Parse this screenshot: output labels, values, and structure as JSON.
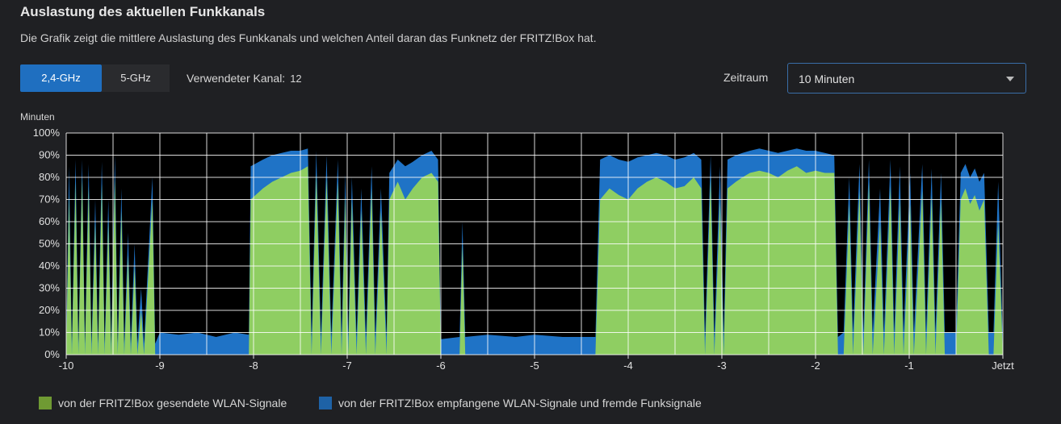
{
  "header": {
    "title": "Auslastung des aktuellen Funkkanals",
    "description": "Die Grafik zeigt die mittlere Auslastung des Funkkanals und welchen Anteil daran das Funknetz der FRITZ!Box hat."
  },
  "tabs": [
    {
      "label": "2,4-GHz",
      "active": true
    },
    {
      "label": "5-GHz",
      "active": false
    }
  ],
  "channel": {
    "label": "Verwendeter Kanal:",
    "value": "12"
  },
  "timerange": {
    "label": "Zeitraum",
    "selected": "10 Minuten"
  },
  "colors": {
    "sent": "#8fce62",
    "received": "#1f73c6",
    "sent_legend": "#6f9a33",
    "received_legend": "#1e62a6"
  },
  "legend": {
    "sent": "von der FRITZ!Box gesendete WLAN-Signale",
    "received": "von der FRITZ!Box empfangene WLAN-Signale und fremde Funksignale"
  },
  "chart_data": {
    "type": "area",
    "stacked": true,
    "ylabel": "Minuten",
    "xlabel": "",
    "ylim": [
      0,
      100
    ],
    "y_ticks": [
      "0%",
      "10%",
      "20%",
      "30%",
      "40%",
      "50%",
      "60%",
      "70%",
      "80%",
      "90%",
      "100%"
    ],
    "xlim": [
      -10,
      0
    ],
    "x_ticks": [
      {
        "v": -10,
        "label": "-10"
      },
      {
        "v": -9,
        "label": "-9"
      },
      {
        "v": -8,
        "label": "-8"
      },
      {
        "v": -7,
        "label": "-7"
      },
      {
        "v": -6,
        "label": "-6"
      },
      {
        "v": -5,
        "label": "-5"
      },
      {
        "v": -4,
        "label": "-4"
      },
      {
        "v": -3,
        "label": "-3"
      },
      {
        "v": -2,
        "label": "-2"
      },
      {
        "v": -1,
        "label": "-1"
      },
      {
        "v": 0,
        "label": "Jetzt"
      }
    ],
    "grid": true,
    "series": [
      {
        "name": "von der FRITZ!Box gesendete WLAN-Signale",
        "key": "sent",
        "points": [
          [
            -10,
            0
          ],
          [
            -9.97,
            72
          ],
          [
            -9.94,
            0
          ],
          [
            -9.9,
            78
          ],
          [
            -9.87,
            0
          ],
          [
            -9.83,
            80
          ],
          [
            -9.8,
            0
          ],
          [
            -9.76,
            76
          ],
          [
            -9.73,
            0
          ],
          [
            -9.69,
            60
          ],
          [
            -9.66,
            0
          ],
          [
            -9.62,
            77
          ],
          [
            -9.59,
            0
          ],
          [
            -9.55,
            60
          ],
          [
            -9.52,
            0
          ],
          [
            -9.48,
            80
          ],
          [
            -9.45,
            0
          ],
          [
            -9.41,
            65
          ],
          [
            -9.38,
            0
          ],
          [
            -9.34,
            45
          ],
          [
            -9.31,
            0
          ],
          [
            -9.27,
            40
          ],
          [
            -9.24,
            0
          ],
          [
            -9.2,
            20
          ],
          [
            -9.17,
            0
          ],
          [
            -9.08,
            70
          ],
          [
            -9.05,
            0
          ],
          [
            -9.0,
            0
          ],
          [
            -8.5,
            0
          ],
          [
            -8.05,
            0
          ],
          [
            -8.03,
            70
          ],
          [
            -7.9,
            75
          ],
          [
            -7.8,
            78
          ],
          [
            -7.7,
            80
          ],
          [
            -7.6,
            82
          ],
          [
            -7.5,
            83
          ],
          [
            -7.42,
            85
          ],
          [
            -7.38,
            0
          ],
          [
            -7.33,
            82
          ],
          [
            -7.28,
            0
          ],
          [
            -7.22,
            80
          ],
          [
            -7.17,
            0
          ],
          [
            -7.1,
            78
          ],
          [
            -7.06,
            0
          ],
          [
            -7.02,
            72
          ],
          [
            -6.99,
            0
          ],
          [
            -6.95,
            70
          ],
          [
            -6.9,
            0
          ],
          [
            -6.85,
            65
          ],
          [
            -6.8,
            0
          ],
          [
            -6.74,
            75
          ],
          [
            -6.7,
            0
          ],
          [
            -6.64,
            65
          ],
          [
            -6.58,
            0
          ],
          [
            -6.55,
            70
          ],
          [
            -6.46,
            78
          ],
          [
            -6.38,
            70
          ],
          [
            -6.3,
            75
          ],
          [
            -6.2,
            80
          ],
          [
            -6.1,
            82
          ],
          [
            -6.03,
            78
          ],
          [
            -6.0,
            0
          ],
          [
            -5.8,
            0
          ],
          [
            -5.77,
            50
          ],
          [
            -5.74,
            0
          ],
          [
            -5.0,
            0
          ],
          [
            -4.35,
            0
          ],
          [
            -4.3,
            70
          ],
          [
            -4.2,
            75
          ],
          [
            -4.1,
            72
          ],
          [
            -4.0,
            70
          ],
          [
            -3.9,
            75
          ],
          [
            -3.8,
            78
          ],
          [
            -3.7,
            80
          ],
          [
            -3.6,
            78
          ],
          [
            -3.5,
            75
          ],
          [
            -3.4,
            76
          ],
          [
            -3.3,
            80
          ],
          [
            -3.22,
            75
          ],
          [
            -3.18,
            0
          ],
          [
            -3.12,
            80
          ],
          [
            -3.08,
            0
          ],
          [
            -3.02,
            70
          ],
          [
            -2.98,
            0
          ],
          [
            -2.94,
            75
          ],
          [
            -2.85,
            78
          ],
          [
            -2.78,
            80
          ],
          [
            -2.7,
            82
          ],
          [
            -2.6,
            83
          ],
          [
            -2.5,
            82
          ],
          [
            -2.4,
            80
          ],
          [
            -2.3,
            83
          ],
          [
            -2.2,
            85
          ],
          [
            -2.1,
            82
          ],
          [
            -2.0,
            83
          ],
          [
            -1.9,
            82
          ],
          [
            -1.8,
            82
          ],
          [
            -1.76,
            0
          ],
          [
            -1.7,
            0
          ],
          [
            -1.64,
            68
          ],
          [
            -1.6,
            0
          ],
          [
            -1.53,
            74
          ],
          [
            -1.49,
            0
          ],
          [
            -1.43,
            78
          ],
          [
            -1.39,
            0
          ],
          [
            -1.31,
            60
          ],
          [
            -1.27,
            0
          ],
          [
            -1.2,
            76
          ],
          [
            -1.16,
            0
          ],
          [
            -1.1,
            70
          ],
          [
            -1.06,
            0
          ],
          [
            -0.99,
            68
          ],
          [
            -0.95,
            0
          ],
          [
            -0.86,
            74
          ],
          [
            -0.82,
            0
          ],
          [
            -0.76,
            72
          ],
          [
            -0.72,
            0
          ],
          [
            -0.66,
            70
          ],
          [
            -0.62,
            0
          ],
          [
            -0.5,
            0
          ],
          [
            -0.45,
            70
          ],
          [
            -0.4,
            75
          ],
          [
            -0.35,
            68
          ],
          [
            -0.3,
            72
          ],
          [
            -0.25,
            65
          ],
          [
            -0.2,
            70
          ],
          [
            -0.15,
            0
          ],
          [
            -0.1,
            0
          ],
          [
            -0.05,
            60
          ],
          [
            0,
            0
          ]
        ]
      },
      {
        "name": "von der FRITZ!Box empfangene WLAN-Signale und fremde Funksignale",
        "key": "received",
        "points": [
          [
            -10,
            5
          ],
          [
            -9.97,
            85
          ],
          [
            -9.94,
            5
          ],
          [
            -9.9,
            88
          ],
          [
            -9.87,
            5
          ],
          [
            -9.83,
            88
          ],
          [
            -9.8,
            5
          ],
          [
            -9.76,
            86
          ],
          [
            -9.73,
            5
          ],
          [
            -9.69,
            70
          ],
          [
            -9.66,
            5
          ],
          [
            -9.62,
            87
          ],
          [
            -9.59,
            5
          ],
          [
            -9.55,
            70
          ],
          [
            -9.52,
            5
          ],
          [
            -9.48,
            90
          ],
          [
            -9.45,
            5
          ],
          [
            -9.41,
            75
          ],
          [
            -9.38,
            5
          ],
          [
            -9.34,
            55
          ],
          [
            -9.31,
            5
          ],
          [
            -9.27,
            50
          ],
          [
            -9.24,
            5
          ],
          [
            -9.2,
            30
          ],
          [
            -9.17,
            5
          ],
          [
            -9.08,
            80
          ],
          [
            -9.05,
            5
          ],
          [
            -9.0,
            10
          ],
          [
            -8.8,
            9
          ],
          [
            -8.6,
            10
          ],
          [
            -8.4,
            8
          ],
          [
            -8.2,
            10
          ],
          [
            -8.05,
            9
          ],
          [
            -8.03,
            85
          ],
          [
            -7.9,
            88
          ],
          [
            -7.8,
            90
          ],
          [
            -7.7,
            91
          ],
          [
            -7.6,
            92
          ],
          [
            -7.5,
            92
          ],
          [
            -7.42,
            93
          ],
          [
            -7.38,
            8
          ],
          [
            -7.33,
            92
          ],
          [
            -7.28,
            8
          ],
          [
            -7.22,
            90
          ],
          [
            -7.17,
            8
          ],
          [
            -7.1,
            88
          ],
          [
            -7.06,
            8
          ],
          [
            -7.02,
            82
          ],
          [
            -6.99,
            8
          ],
          [
            -6.95,
            80
          ],
          [
            -6.9,
            8
          ],
          [
            -6.85,
            75
          ],
          [
            -6.8,
            8
          ],
          [
            -6.74,
            85
          ],
          [
            -6.7,
            8
          ],
          [
            -6.64,
            75
          ],
          [
            -6.58,
            8
          ],
          [
            -6.55,
            82
          ],
          [
            -6.46,
            88
          ],
          [
            -6.38,
            85
          ],
          [
            -6.3,
            87
          ],
          [
            -6.2,
            90
          ],
          [
            -6.1,
            92
          ],
          [
            -6.03,
            88
          ],
          [
            -6.0,
            7
          ],
          [
            -5.8,
            8
          ],
          [
            -5.77,
            60
          ],
          [
            -5.74,
            8
          ],
          [
            -5.5,
            9
          ],
          [
            -5.2,
            8
          ],
          [
            -5.0,
            9
          ],
          [
            -4.7,
            8
          ],
          [
            -4.35,
            8
          ],
          [
            -4.3,
            88
          ],
          [
            -4.2,
            90
          ],
          [
            -4.1,
            88
          ],
          [
            -4.0,
            87
          ],
          [
            -3.9,
            89
          ],
          [
            -3.8,
            90
          ],
          [
            -3.7,
            91
          ],
          [
            -3.6,
            90
          ],
          [
            -3.5,
            88
          ],
          [
            -3.4,
            89
          ],
          [
            -3.3,
            91
          ],
          [
            -3.22,
            88
          ],
          [
            -3.18,
            8
          ],
          [
            -3.12,
            90
          ],
          [
            -3.08,
            8
          ],
          [
            -3.02,
            85
          ],
          [
            -2.98,
            8
          ],
          [
            -2.94,
            88
          ],
          [
            -2.85,
            90
          ],
          [
            -2.78,
            91
          ],
          [
            -2.7,
            92
          ],
          [
            -2.6,
            93
          ],
          [
            -2.5,
            92
          ],
          [
            -2.4,
            91
          ],
          [
            -2.3,
            92
          ],
          [
            -2.2,
            93
          ],
          [
            -2.1,
            92
          ],
          [
            -2.0,
            92
          ],
          [
            -1.9,
            91
          ],
          [
            -1.8,
            90
          ],
          [
            -1.76,
            8
          ],
          [
            -1.7,
            10
          ],
          [
            -1.64,
            80
          ],
          [
            -1.6,
            10
          ],
          [
            -1.53,
            86
          ],
          [
            -1.49,
            10
          ],
          [
            -1.43,
            88
          ],
          [
            -1.39,
            10
          ],
          [
            -1.31,
            75
          ],
          [
            -1.27,
            10
          ],
          [
            -1.2,
            88
          ],
          [
            -1.16,
            10
          ],
          [
            -1.1,
            85
          ],
          [
            -1.06,
            10
          ],
          [
            -0.99,
            82
          ],
          [
            -0.95,
            10
          ],
          [
            -0.86,
            86
          ],
          [
            -0.82,
            10
          ],
          [
            -0.76,
            84
          ],
          [
            -0.72,
            10
          ],
          [
            -0.66,
            82
          ],
          [
            -0.62,
            10
          ],
          [
            -0.5,
            10
          ],
          [
            -0.45,
            82
          ],
          [
            -0.4,
            86
          ],
          [
            -0.35,
            80
          ],
          [
            -0.3,
            84
          ],
          [
            -0.25,
            78
          ],
          [
            -0.2,
            82
          ],
          [
            -0.15,
            10
          ],
          [
            -0.1,
            10
          ],
          [
            -0.05,
            78
          ],
          [
            0,
            5
          ]
        ]
      }
    ]
  }
}
